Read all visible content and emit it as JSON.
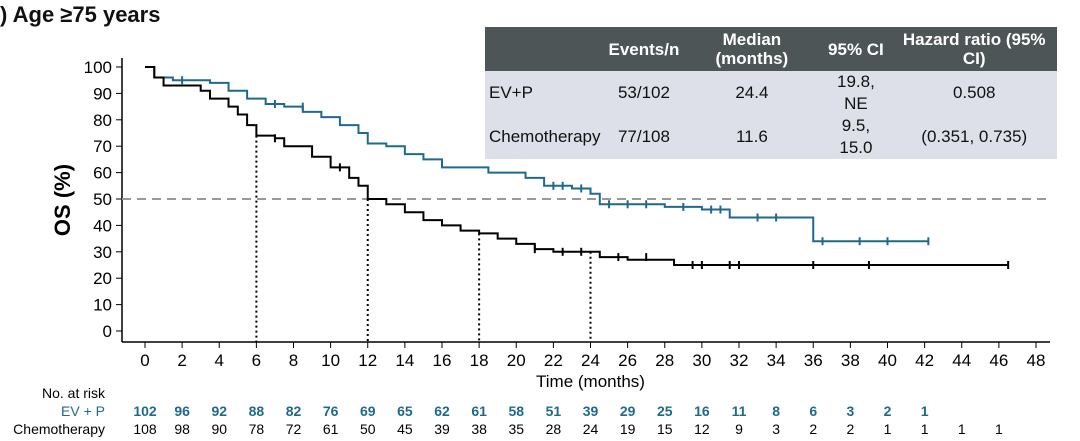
{
  "title": ") Age ≥75 years",
  "stats_table": {
    "headers": [
      "",
      "Events/n",
      "Median (months)",
      "95% CI",
      "Hazard ratio (95% CI)"
    ],
    "rows": [
      [
        "EV+P",
        "53/102",
        "24.4",
        "19.8, NE",
        "0.508"
      ],
      [
        "Chemotherapy",
        "77/108",
        "11.6",
        "9.5, 15.0",
        "(0.351, 0.735)"
      ]
    ]
  },
  "colors": {
    "evp": "#1f6a8c",
    "chemo": "#000000",
    "median_line": "#999999"
  },
  "chart_data": {
    "type": "line",
    "subtype": "kaplan-meier step",
    "xlabel": "Time (months)",
    "ylabel": "OS (%)",
    "xlim": [
      0,
      48
    ],
    "ylim": [
      0,
      100
    ],
    "xticks": [
      0,
      2,
      4,
      6,
      8,
      10,
      12,
      14,
      16,
      18,
      20,
      22,
      24,
      26,
      28,
      30,
      32,
      34,
      36,
      38,
      40,
      42,
      44,
      46,
      48
    ],
    "yticks": [
      0,
      10,
      20,
      30,
      40,
      50,
      60,
      70,
      80,
      90,
      100
    ],
    "reference_line_y": 50,
    "vertical_reference_x": [
      6,
      12,
      18,
      24
    ],
    "series": [
      {
        "name": "EV+P",
        "color": "#1f6a8c",
        "steps": [
          [
            0,
            100
          ],
          [
            0.5,
            96
          ],
          [
            1.5,
            95
          ],
          [
            3.5,
            94
          ],
          [
            4.5,
            91
          ],
          [
            5.5,
            88
          ],
          [
            6.5,
            86
          ],
          [
            7.5,
            85
          ],
          [
            8.5,
            83
          ],
          [
            9.5,
            81
          ],
          [
            10.5,
            78
          ],
          [
            11.5,
            75
          ],
          [
            12,
            71
          ],
          [
            13,
            70
          ],
          [
            14,
            67
          ],
          [
            15,
            65
          ],
          [
            16,
            62
          ],
          [
            18.5,
            60
          ],
          [
            20.5,
            58
          ],
          [
            21.5,
            55
          ],
          [
            23,
            54
          ],
          [
            24,
            52
          ],
          [
            24.5,
            48
          ],
          [
            28,
            47
          ],
          [
            30,
            46
          ],
          [
            31.5,
            43
          ],
          [
            36,
            34
          ],
          [
            42.2,
            34
          ]
        ],
        "censored": [
          [
            2,
            95
          ],
          [
            7,
            86
          ],
          [
            8.5,
            85
          ],
          [
            22,
            55
          ],
          [
            22.5,
            55
          ],
          [
            23.5,
            54
          ],
          [
            25,
            48
          ],
          [
            26,
            48
          ],
          [
            27,
            48
          ],
          [
            29,
            47
          ],
          [
            30.5,
            46
          ],
          [
            31,
            46
          ],
          [
            33,
            43
          ],
          [
            34,
            43
          ],
          [
            36.5,
            34
          ],
          [
            38.5,
            34
          ],
          [
            40,
            34
          ],
          [
            42.2,
            34
          ]
        ]
      },
      {
        "name": "Chemotherapy",
        "color": "#000000",
        "steps": [
          [
            0,
            100
          ],
          [
            0.5,
            96
          ],
          [
            1,
            93
          ],
          [
            3,
            91
          ],
          [
            3.5,
            88
          ],
          [
            4.5,
            85
          ],
          [
            5,
            82
          ],
          [
            5.5,
            78
          ],
          [
            6,
            74
          ],
          [
            7,
            73
          ],
          [
            7.5,
            70
          ],
          [
            9,
            66
          ],
          [
            10,
            62
          ],
          [
            11,
            58
          ],
          [
            11.5,
            55
          ],
          [
            12,
            50
          ],
          [
            13,
            48
          ],
          [
            14,
            45
          ],
          [
            15,
            42
          ],
          [
            16,
            40
          ],
          [
            17,
            38
          ],
          [
            18,
            37
          ],
          [
            19,
            35
          ],
          [
            20,
            33
          ],
          [
            21,
            31
          ],
          [
            22,
            30
          ],
          [
            24.5,
            28
          ],
          [
            26,
            27
          ],
          [
            28.5,
            25
          ],
          [
            46.5,
            25
          ]
        ],
        "censored": [
          [
            7,
            73
          ],
          [
            10.5,
            62
          ],
          [
            21,
            31
          ],
          [
            22.5,
            30
          ],
          [
            23.5,
            30
          ],
          [
            25.5,
            28
          ],
          [
            27,
            28
          ],
          [
            29.5,
            25
          ],
          [
            30,
            25
          ],
          [
            31.5,
            25
          ],
          [
            32,
            25
          ],
          [
            36,
            25
          ],
          [
            39,
            25
          ],
          [
            46.5,
            25
          ]
        ]
      }
    ],
    "risk_table": {
      "label": "No. at risk",
      "times": [
        0,
        2,
        4,
        6,
        8,
        10,
        12,
        14,
        16,
        18,
        20,
        22,
        24,
        26,
        28,
        30,
        32,
        34,
        36,
        38,
        40,
        42,
        44,
        46
      ],
      "rows": [
        {
          "name": "EV + P",
          "values": [
            102,
            96,
            92,
            88,
            82,
            76,
            69,
            65,
            62,
            61,
            58,
            51,
            39,
            29,
            25,
            16,
            11,
            8,
            6,
            3,
            2,
            1
          ]
        },
        {
          "name": "Chemotherapy",
          "values": [
            108,
            98,
            90,
            78,
            72,
            61,
            50,
            45,
            39,
            38,
            35,
            28,
            24,
            19,
            15,
            12,
            9,
            3,
            2,
            2,
            1,
            1,
            1,
            1
          ]
        }
      ]
    }
  }
}
